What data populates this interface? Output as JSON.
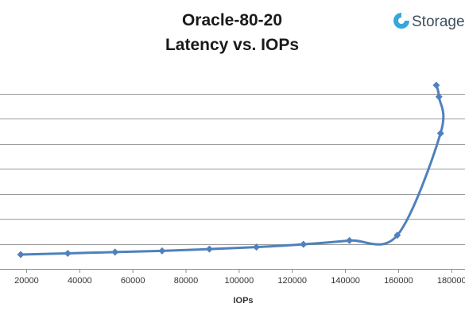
{
  "chart_data": {
    "type": "line",
    "title": [
      "Oracle-80-20",
      "Latency vs. IOPs"
    ],
    "xlabel": "IOPs",
    "ylabel": "",
    "xlim": [
      10000,
      185000
    ],
    "xticks": [
      20000,
      40000,
      60000,
      80000,
      100000,
      120000,
      140000,
      160000,
      180000
    ],
    "ylim": [
      0,
      8
    ],
    "ygridlines": [
      0,
      1,
      2,
      3,
      4,
      5,
      6,
      7
    ],
    "grid": true,
    "smooth": true,
    "series": [
      {
        "points": [
          [
            17800,
            0.57
          ],
          [
            35500,
            0.62
          ],
          [
            53300,
            0.67
          ],
          [
            71000,
            0.72
          ],
          [
            88800,
            0.79
          ],
          [
            106500,
            0.87
          ],
          [
            124200,
            0.98
          ],
          [
            141500,
            1.13
          ],
          [
            159500,
            1.34
          ],
          [
            175800,
            5.41
          ],
          [
            175200,
            6.87
          ],
          [
            174200,
            7.33
          ]
        ],
        "color": "#4f81bd"
      }
    ]
  },
  "logo": {
    "text": "Storage",
    "color": "#3d4f5e",
    "icon_color": "#36a8d8"
  }
}
